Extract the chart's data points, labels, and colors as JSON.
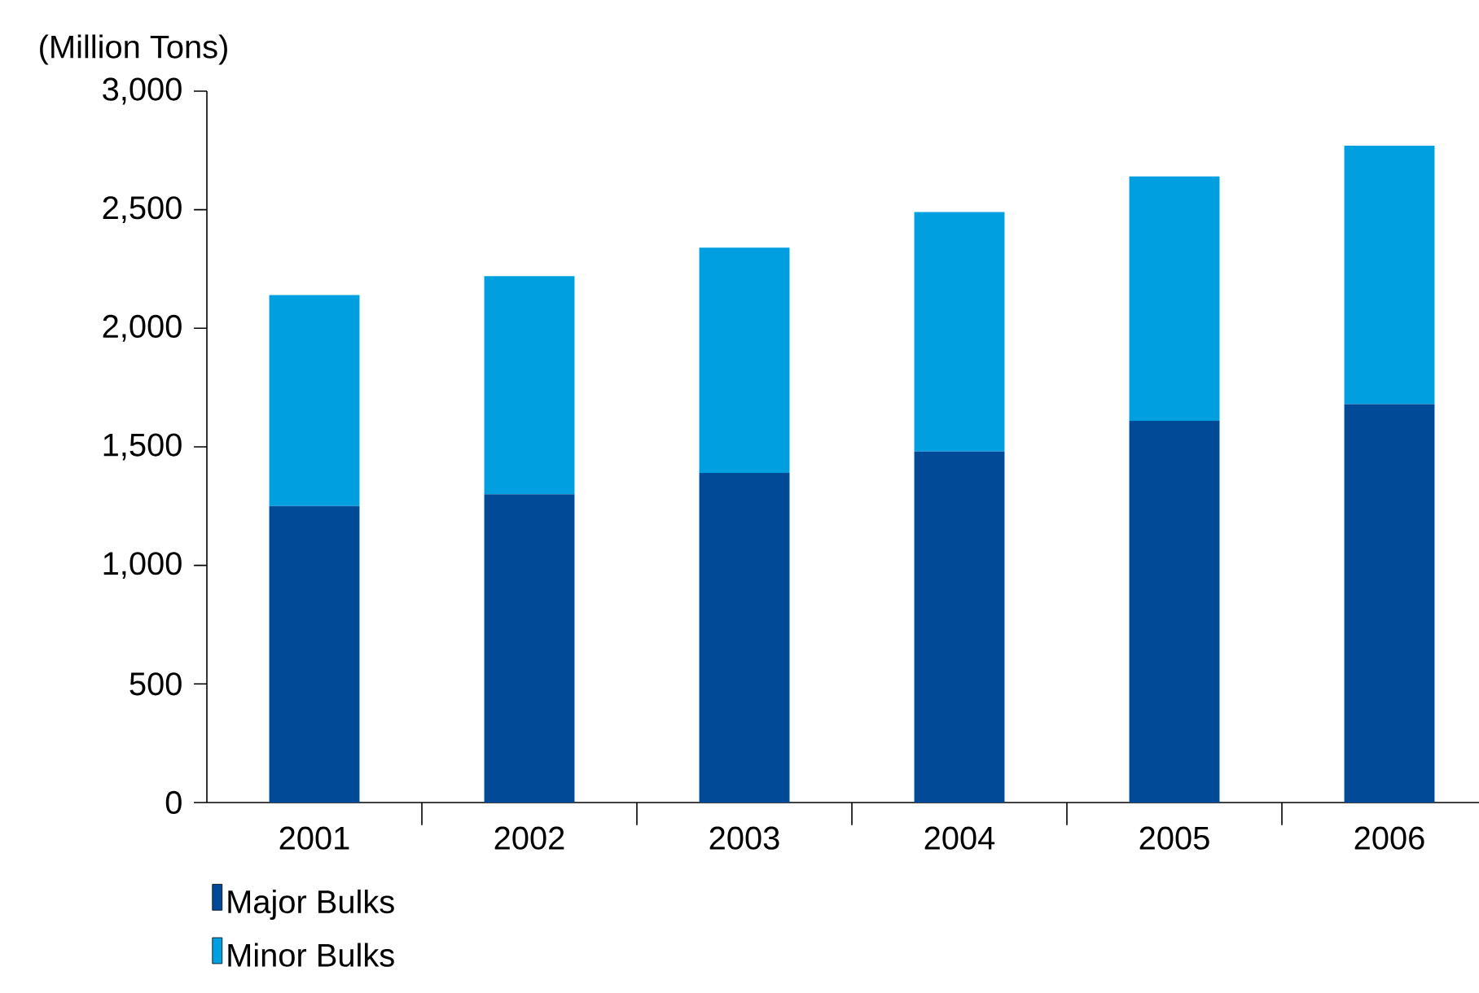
{
  "chart_data": {
    "type": "bar",
    "stacked": true,
    "ylabel": "(Million Tons)",
    "categories": [
      "2001",
      "2002",
      "2003",
      "2004",
      "2005",
      "2006"
    ],
    "series": [
      {
        "name": "Major Bulks",
        "color": "#004a98",
        "values": [
          1250,
          1300,
          1390,
          1480,
          1610,
          1680
        ]
      },
      {
        "name": "Minor Bulks",
        "color": "#00a0e0",
        "values": [
          890,
          920,
          950,
          1010,
          1030,
          1090
        ]
      }
    ],
    "ylim": [
      0,
      3000
    ],
    "yticks": [
      {
        "value": 0,
        "label": "0"
      },
      {
        "value": 500,
        "label": "500"
      },
      {
        "value": 1000,
        "label": "1,000"
      },
      {
        "value": 1500,
        "label": "1,500"
      },
      {
        "value": 2000,
        "label": "2,000"
      },
      {
        "value": 2500,
        "label": "2,500"
      },
      {
        "value": 3000,
        "label": "3,000"
      }
    ],
    "grid": false,
    "legend": "bottom left"
  }
}
